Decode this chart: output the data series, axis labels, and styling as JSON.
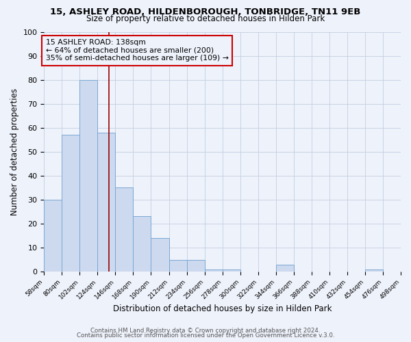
{
  "title": "15, ASHLEY ROAD, HILDENBOROUGH, TONBRIDGE, TN11 9EB",
  "subtitle": "Size of property relative to detached houses in Hilden Park",
  "xlabel": "Distribution of detached houses by size in Hilden Park",
  "ylabel": "Number of detached properties",
  "bins": [
    58,
    80,
    102,
    124,
    146,
    168,
    190,
    212,
    234,
    256,
    278,
    300,
    322,
    344,
    366,
    388,
    410,
    432,
    454,
    476,
    498
  ],
  "counts": [
    30,
    57,
    80,
    58,
    35,
    23,
    14,
    5,
    5,
    1,
    1,
    0,
    0,
    3,
    0,
    0,
    0,
    0,
    1,
    0
  ],
  "bar_color": "#ccd9ee",
  "bar_edge_color": "#7aa8d4",
  "vline_x": 138,
  "vline_color": "#990000",
  "ylim": [
    0,
    100
  ],
  "annotation_title": "15 ASHLEY ROAD: 138sqm",
  "annotation_line1": "← 64% of detached houses are smaller (200)",
  "annotation_line2": "35% of semi-detached houses are larger (109) →",
  "annotation_box_color": "#cc0000",
  "footer1": "Contains HM Land Registry data © Crown copyright and database right 2024.",
  "footer2": "Contains public sector information licensed under the Open Government Licence v.3.0.",
  "tick_labels": [
    "58sqm",
    "80sqm",
    "102sqm",
    "124sqm",
    "146sqm",
    "168sqm",
    "190sqm",
    "212sqm",
    "234sqm",
    "256sqm",
    "278sqm",
    "300sqm",
    "322sqm",
    "344sqm",
    "366sqm",
    "388sqm",
    "410sqm",
    "432sqm",
    "454sqm",
    "476sqm",
    "498sqm"
  ],
  "background_color": "#eef2fb"
}
